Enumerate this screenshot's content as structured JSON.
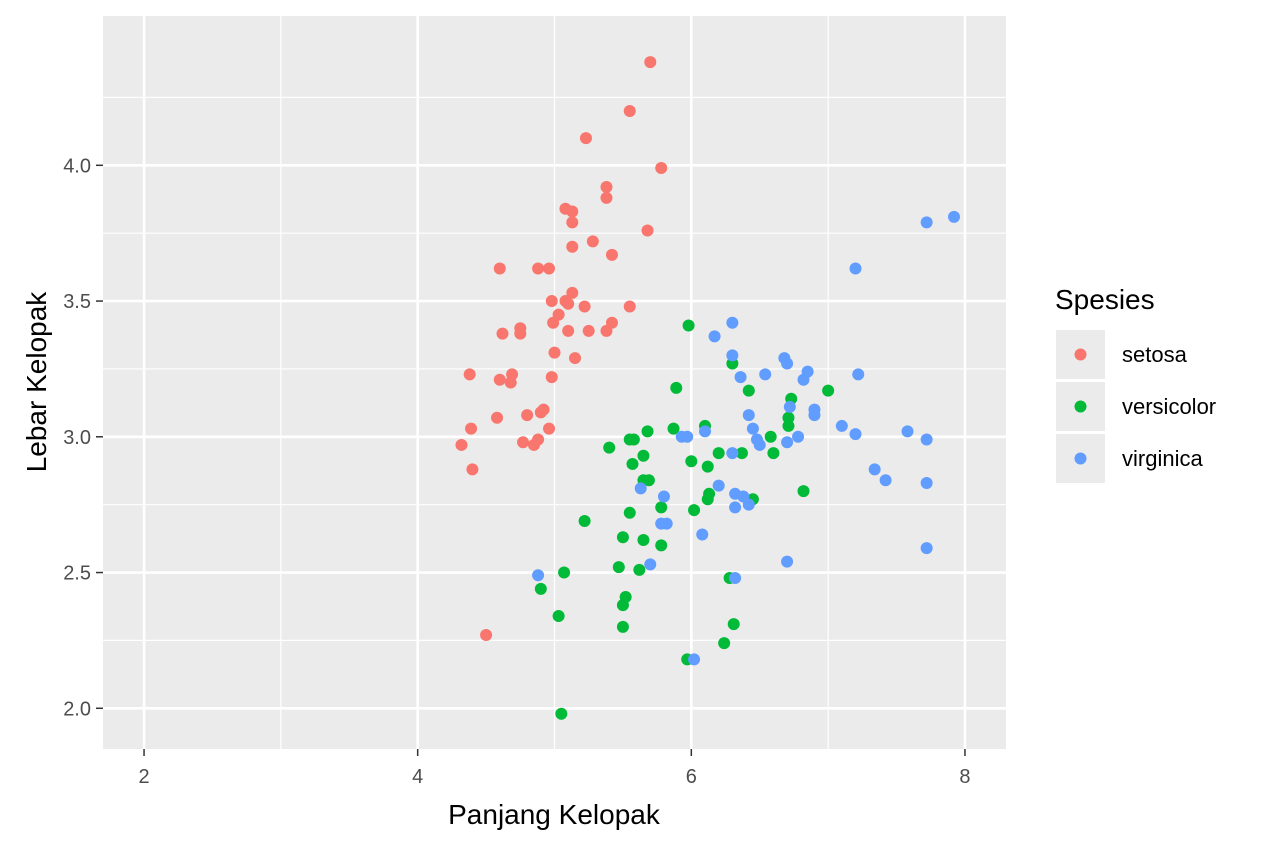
{
  "chart_data": {
    "type": "scatter",
    "xlabel": "Panjang Kelopak",
    "ylabel": "Lebar Kelopak",
    "xlim": [
      1.7,
      8.3
    ],
    "ylim": [
      1.85,
      4.55
    ],
    "xticks": [
      2,
      4,
      6,
      8
    ],
    "xtick_labels": [
      "2",
      "4",
      "6",
      "8"
    ],
    "yticks": [
      2.0,
      2.5,
      3.0,
      3.5,
      4.0
    ],
    "ytick_labels": [
      "2.0",
      "2.5",
      "3.0",
      "3.5",
      "4.0"
    ],
    "grid": true,
    "legend": {
      "title": "Spesies",
      "position": "right"
    },
    "colors": {
      "setosa": "#F8766D",
      "versicolor": "#00BA38",
      "virginica": "#619CFF",
      "panel": "#EBEBEB",
      "grid": "#FFFFFF"
    },
    "series": [
      {
        "name": "setosa",
        "points": [
          [
            5.7,
            4.38
          ],
          [
            5.55,
            4.2
          ],
          [
            5.23,
            4.1
          ],
          [
            5.78,
            3.99
          ],
          [
            5.38,
            3.92
          ],
          [
            5.38,
            3.88
          ],
          [
            5.08,
            3.84
          ],
          [
            5.13,
            3.83
          ],
          [
            5.13,
            3.79
          ],
          [
            5.68,
            3.76
          ],
          [
            5.28,
            3.72
          ],
          [
            5.13,
            3.7
          ],
          [
            5.42,
            3.67
          ],
          [
            4.6,
            3.62
          ],
          [
            4.88,
            3.62
          ],
          [
            4.96,
            3.62
          ],
          [
            5.13,
            3.53
          ],
          [
            4.98,
            3.5
          ],
          [
            5.08,
            3.5
          ],
          [
            5.1,
            3.49
          ],
          [
            5.22,
            3.48
          ],
          [
            5.55,
            3.48
          ],
          [
            5.03,
            3.45
          ],
          [
            4.99,
            3.42
          ],
          [
            5.42,
            3.42
          ],
          [
            4.62,
            3.38
          ],
          [
            4.75,
            3.4
          ],
          [
            4.75,
            3.38
          ],
          [
            5.1,
            3.39
          ],
          [
            5.25,
            3.39
          ],
          [
            5.38,
            3.39
          ],
          [
            5.0,
            3.31
          ],
          [
            5.15,
            3.29
          ],
          [
            4.38,
            3.23
          ],
          [
            4.6,
            3.21
          ],
          [
            4.69,
            3.23
          ],
          [
            4.68,
            3.2
          ],
          [
            4.98,
            3.22
          ],
          [
            4.58,
            3.07
          ],
          [
            4.8,
            3.08
          ],
          [
            4.92,
            3.1
          ],
          [
            4.9,
            3.09
          ],
          [
            4.39,
            3.03
          ],
          [
            4.96,
            3.03
          ],
          [
            4.32,
            2.97
          ],
          [
            4.77,
            2.98
          ],
          [
            4.85,
            2.97
          ],
          [
            4.88,
            2.99
          ],
          [
            4.4,
            2.88
          ],
          [
            4.5,
            2.27
          ]
        ]
      },
      {
        "name": "versicolor",
        "points": [
          [
            5.98,
            3.41
          ],
          [
            6.3,
            3.27
          ],
          [
            5.89,
            3.18
          ],
          [
            7.0,
            3.17
          ],
          [
            6.42,
            3.17
          ],
          [
            6.73,
            3.14
          ],
          [
            6.71,
            3.07
          ],
          [
            6.71,
            3.04
          ],
          [
            6.1,
            3.04
          ],
          [
            5.68,
            3.02
          ],
          [
            5.87,
            3.03
          ],
          [
            5.58,
            2.99
          ],
          [
            5.55,
            2.99
          ],
          [
            5.4,
            2.96
          ],
          [
            6.37,
            2.94
          ],
          [
            6.2,
            2.94
          ],
          [
            6.6,
            2.94
          ],
          [
            5.65,
            2.93
          ],
          [
            6.0,
            2.91
          ],
          [
            6.58,
            3.0
          ],
          [
            5.57,
            2.9
          ],
          [
            6.12,
            2.89
          ],
          [
            5.65,
            2.84
          ],
          [
            5.69,
            2.84
          ],
          [
            6.82,
            2.8
          ],
          [
            6.13,
            2.79
          ],
          [
            6.12,
            2.77
          ],
          [
            6.45,
            2.77
          ],
          [
            5.78,
            2.74
          ],
          [
            6.02,
            2.73
          ],
          [
            5.55,
            2.72
          ],
          [
            5.22,
            2.69
          ],
          [
            5.5,
            2.63
          ],
          [
            5.65,
            2.62
          ],
          [
            5.78,
            2.6
          ],
          [
            5.62,
            2.51
          ],
          [
            5.47,
            2.52
          ],
          [
            5.07,
            2.5
          ],
          [
            6.28,
            2.48
          ],
          [
            4.9,
            2.44
          ],
          [
            5.52,
            2.41
          ],
          [
            5.5,
            2.38
          ],
          [
            5.03,
            2.34
          ],
          [
            6.31,
            2.31
          ],
          [
            5.5,
            2.3
          ],
          [
            6.24,
            2.24
          ],
          [
            5.97,
            2.18
          ],
          [
            5.05,
            1.98
          ]
        ]
      },
      {
        "name": "virginica",
        "points": [
          [
            7.92,
            3.81
          ],
          [
            7.72,
            3.79
          ],
          [
            7.2,
            3.62
          ],
          [
            6.3,
            3.42
          ],
          [
            6.17,
            3.37
          ],
          [
            6.3,
            3.3
          ],
          [
            6.68,
            3.29
          ],
          [
            6.7,
            3.27
          ],
          [
            6.85,
            3.24
          ],
          [
            6.36,
            3.22
          ],
          [
            6.54,
            3.23
          ],
          [
            7.22,
            3.23
          ],
          [
            6.82,
            3.21
          ],
          [
            6.72,
            3.11
          ],
          [
            6.9,
            3.1
          ],
          [
            6.9,
            3.08
          ],
          [
            6.42,
            3.08
          ],
          [
            7.1,
            3.04
          ],
          [
            6.45,
            3.03
          ],
          [
            6.1,
            3.02
          ],
          [
            7.58,
            3.02
          ],
          [
            7.2,
            3.01
          ],
          [
            5.93,
            3.0
          ],
          [
            5.97,
            3.0
          ],
          [
            6.78,
            3.0
          ],
          [
            6.48,
            2.99
          ],
          [
            6.5,
            2.97
          ],
          [
            6.7,
            2.98
          ],
          [
            7.72,
            2.99
          ],
          [
            6.3,
            2.94
          ],
          [
            7.34,
            2.88
          ],
          [
            7.42,
            2.84
          ],
          [
            7.72,
            2.83
          ],
          [
            6.2,
            2.82
          ],
          [
            5.63,
            2.81
          ],
          [
            6.32,
            2.79
          ],
          [
            6.38,
            2.78
          ],
          [
            5.8,
            2.78
          ],
          [
            6.32,
            2.74
          ],
          [
            6.42,
            2.75
          ],
          [
            5.78,
            2.68
          ],
          [
            5.82,
            2.68
          ],
          [
            6.08,
            2.64
          ],
          [
            5.7,
            2.53
          ],
          [
            6.7,
            2.54
          ],
          [
            7.72,
            2.59
          ],
          [
            4.88,
            2.49
          ],
          [
            6.32,
            2.48
          ],
          [
            6.02,
            2.18
          ]
        ]
      }
    ]
  }
}
